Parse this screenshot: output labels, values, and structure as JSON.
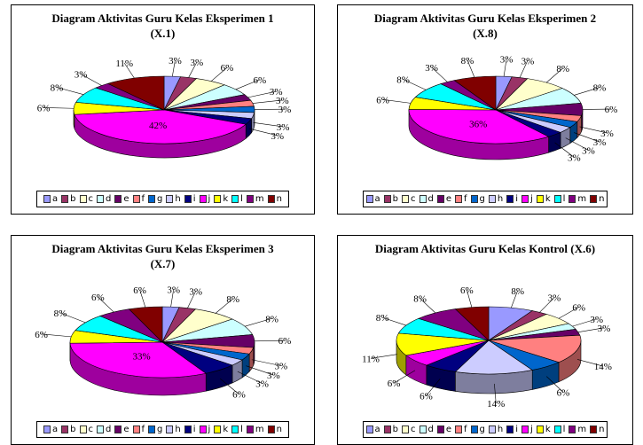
{
  "colors": [
    "#9999ff",
    "#993366",
    "#ffffcc",
    "#ccffff",
    "#660066",
    "#ff8080",
    "#0066cc",
    "#ccccff",
    "#000080",
    "#ff00ff",
    "#ffff00",
    "#00ffff",
    "#800080",
    "#800000"
  ],
  "legend_labels": [
    "a",
    "b",
    "c",
    "d",
    "e",
    "f",
    "g",
    "h",
    "i",
    "j",
    "k",
    "l",
    "m",
    "n"
  ],
  "chart_data": [
    {
      "type": "pie",
      "title": [
        "Diagram Aktivitas Guru Kelas Eksperimen 1",
        "(X.1)"
      ],
      "categories": [
        "a",
        "b",
        "c",
        "d",
        "e",
        "f",
        "g",
        "h",
        "i",
        "j",
        "k",
        "l",
        "m",
        "n"
      ],
      "values": [
        3,
        3,
        6,
        6,
        3,
        3,
        3,
        3,
        3,
        42,
        6,
        8,
        3,
        11
      ],
      "labels": [
        "3%",
        "3%",
        "6%",
        "6%",
        "3%",
        "3%",
        "3%",
        "3%",
        "3%",
        "42%",
        "6%",
        "8%",
        "3%",
        "11%"
      ],
      "legend": "bottom"
    },
    {
      "type": "pie",
      "title": [
        "Diagram Aktivitas Guru Kelas Eksperimen 2",
        "(X.8)"
      ],
      "categories": [
        "a",
        "b",
        "c",
        "d",
        "e",
        "f",
        "g",
        "h",
        "i",
        "j",
        "k",
        "l",
        "m",
        "n"
      ],
      "values": [
        3,
        3,
        8,
        8,
        6,
        3,
        3,
        3,
        3,
        36,
        6,
        8,
        3,
        8
      ],
      "labels": [
        "3%",
        "3%",
        "8%",
        "8%",
        "6%",
        "3%",
        "3%",
        "3%",
        "3%",
        "36%",
        "6%",
        "8%",
        "3%",
        "8%"
      ],
      "legend": "bottom"
    },
    {
      "type": "pie",
      "title": [
        "Diagram Aktivitas Guru Kelas Eksperimen 3",
        "(X.7)"
      ],
      "categories": [
        "a",
        "b",
        "c",
        "d",
        "e",
        "f",
        "g",
        "h",
        "i",
        "j",
        "k",
        "l",
        "m",
        "n"
      ],
      "values": [
        3,
        3,
        8,
        8,
        6,
        3,
        3,
        3,
        6,
        33,
        6,
        8,
        6,
        6
      ],
      "labels": [
        "3%",
        "3%",
        "8%",
        "8%",
        "6%",
        "3%",
        "3%",
        "3%",
        "6%",
        "33%",
        "6%",
        "8%",
        "6%",
        "6%"
      ],
      "legend": "bottom"
    },
    {
      "type": "pie",
      "title": [
        "Diagram Aktivitas Guru Kelas Kontrol (X.6)"
      ],
      "categories": [
        "a",
        "b",
        "c",
        "d",
        "e",
        "f",
        "g",
        "h",
        "i",
        "j",
        "k",
        "l",
        "m",
        "n"
      ],
      "values": [
        8,
        3,
        6,
        3,
        3,
        14,
        6,
        14,
        6,
        6,
        11,
        8,
        8,
        6
      ],
      "labels": [
        "8%",
        "3%",
        "6%",
        "3%",
        "3%",
        "14%",
        "6%",
        "14%",
        "6%",
        "6%",
        "11%",
        "8%",
        "8%",
        "6%"
      ],
      "legend": "bottom"
    }
  ]
}
